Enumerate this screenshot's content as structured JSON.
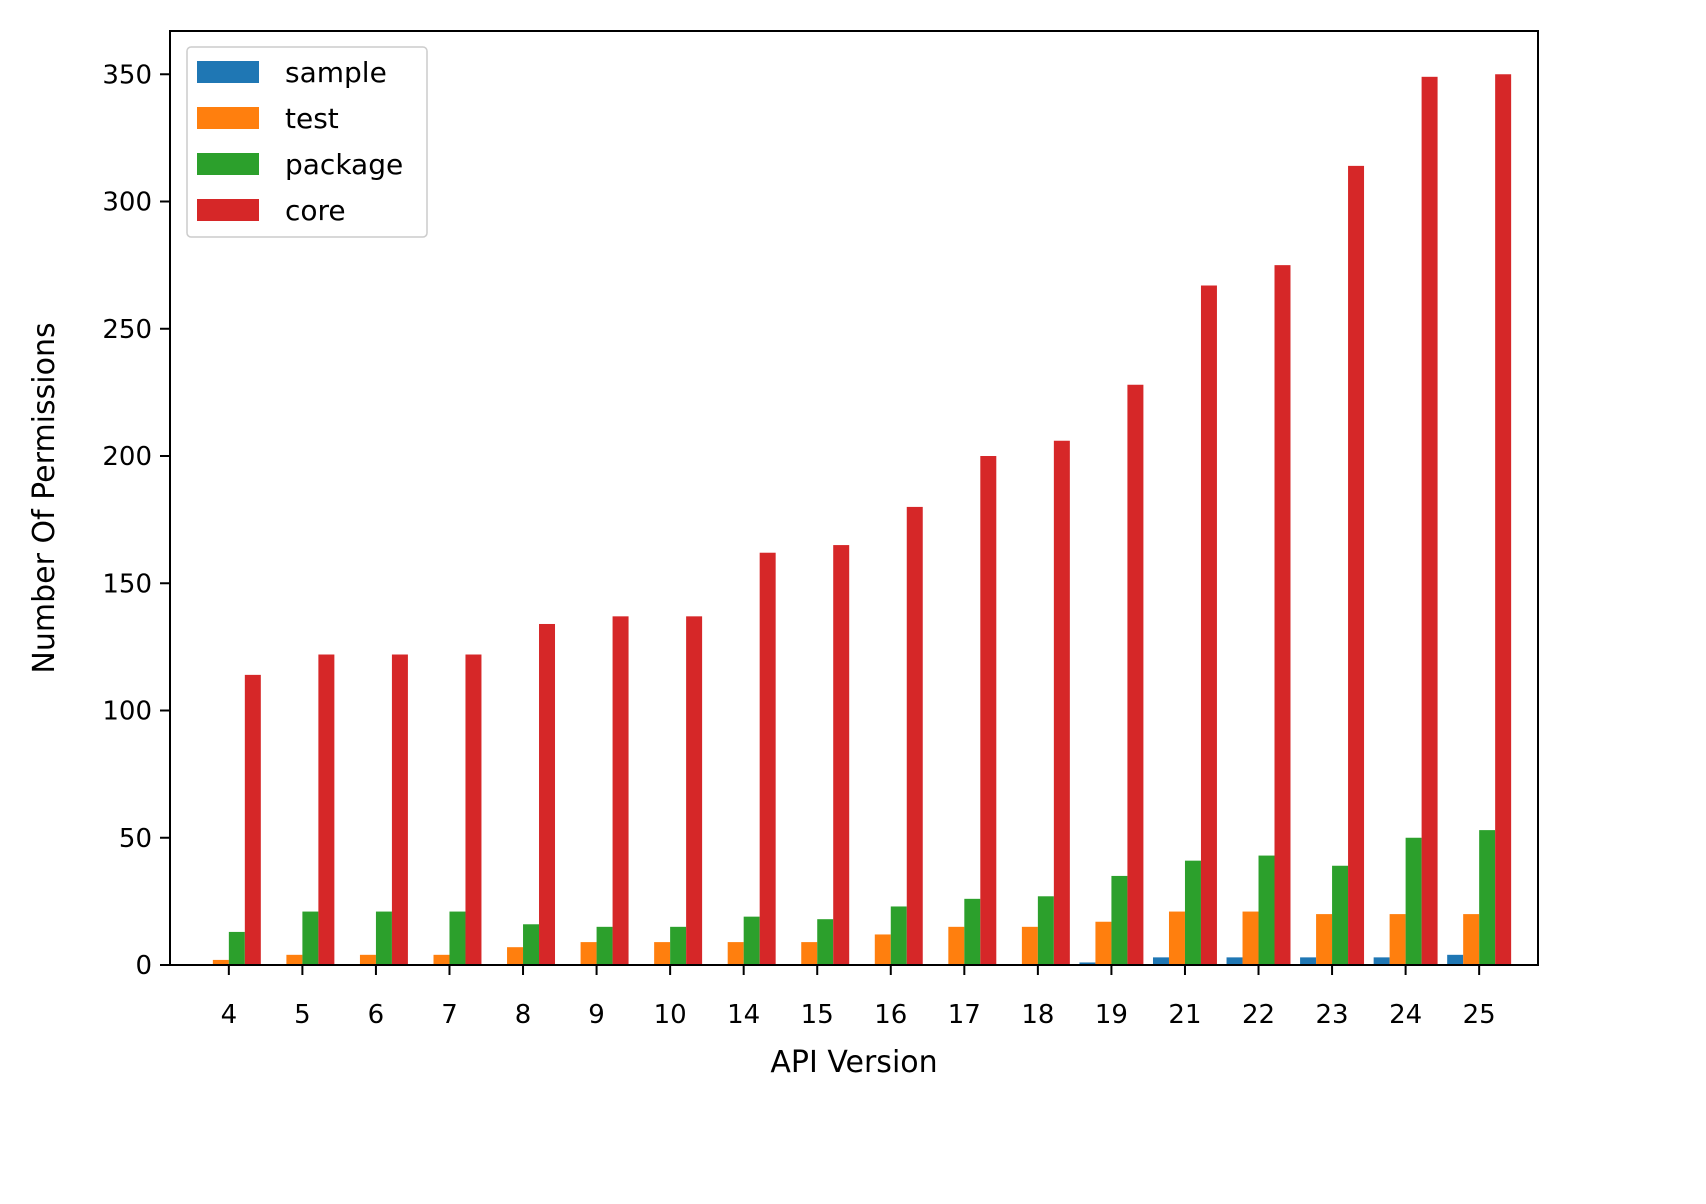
{
  "chart_data": {
    "type": "bar",
    "title": "",
    "xlabel": "API Version",
    "ylabel": "Number Of Permissions",
    "categories": [
      "4",
      "5",
      "6",
      "7",
      "8",
      "9",
      "10",
      "14",
      "15",
      "16",
      "17",
      "18",
      "19",
      "21",
      "22",
      "23",
      "24",
      "25"
    ],
    "ylim": [
      0,
      367
    ],
    "yticks": [
      0,
      50,
      100,
      150,
      200,
      250,
      300,
      350
    ],
    "grid": false,
    "legend_position": "top-left",
    "series": [
      {
        "name": "sample",
        "color": "#1f77b4",
        "values": [
          0,
          0,
          0,
          0,
          0,
          0,
          0,
          0,
          0,
          0,
          0,
          0,
          1,
          3,
          3,
          3,
          3,
          4
        ]
      },
      {
        "name": "test",
        "color": "#ff7f0e",
        "values": [
          2,
          4,
          4,
          4,
          7,
          9,
          9,
          9,
          9,
          12,
          15,
          15,
          17,
          21,
          21,
          20,
          20,
          20
        ]
      },
      {
        "name": "package",
        "color": "#2ca02c",
        "values": [
          13,
          21,
          21,
          21,
          16,
          15,
          15,
          19,
          18,
          23,
          26,
          27,
          35,
          41,
          43,
          39,
          50,
          53
        ]
      },
      {
        "name": "core",
        "color": "#d62728",
        "values": [
          114,
          122,
          122,
          122,
          134,
          137,
          137,
          162,
          165,
          180,
          200,
          206,
          228,
          267,
          275,
          314,
          349,
          350
        ]
      }
    ]
  }
}
